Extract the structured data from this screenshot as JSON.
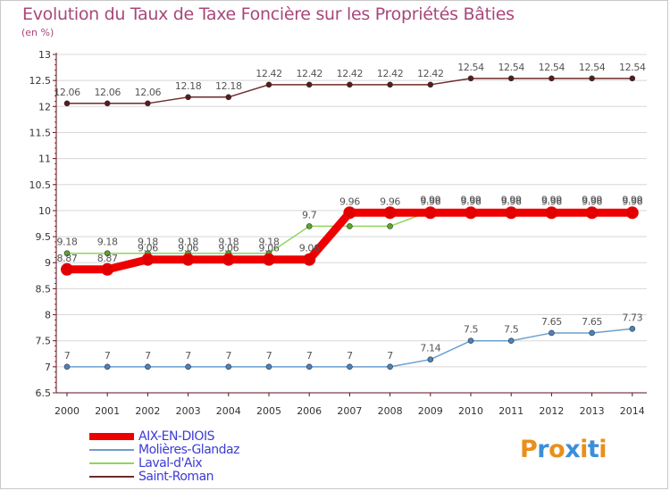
{
  "header": {
    "title": "Evolution du Taux de Taxe Foncière sur les Propriétés Bâties",
    "unit": "(en %)"
  },
  "logo": {
    "text": "Proxiti"
  },
  "colors": {
    "title": "#a8477a",
    "legend_text": "#3b3bd6",
    "axis": "#5a0f1e",
    "grid": "#d8d8d8"
  },
  "chart_data": {
    "type": "line",
    "title": "Evolution du Taux de Taxe Foncière sur les Propriétés Bâties",
    "ylabel": "(en %)",
    "xlabel": "",
    "ylim": [
      6.5,
      13
    ],
    "yticks": [
      6.5,
      7,
      7.5,
      8,
      8.5,
      9,
      9.5,
      10,
      10.5,
      11,
      11.5,
      12,
      12.5,
      13
    ],
    "ytick_labels": [
      "6.5",
      "7",
      "7.5",
      "8",
      "8.5",
      "9",
      "9.5",
      "10",
      "10.5",
      "11",
      "11.5",
      "12",
      "12.5",
      "13"
    ],
    "categories": [
      "2000",
      "2001",
      "2002",
      "2003",
      "2004",
      "2005",
      "2006",
      "2007",
      "2008",
      "2009",
      "2010",
      "2011",
      "2012",
      "2013",
      "2014"
    ],
    "grid": "horizontal",
    "legend_position": "bottom-left",
    "series": [
      {
        "name": "Saint-Roman",
        "color": "#6e2a2a",
        "marker_color": "#5a1a1a",
        "values": [
          12.06,
          12.06,
          12.06,
          12.18,
          12.18,
          12.42,
          12.42,
          12.42,
          12.42,
          12.42,
          12.54,
          12.54,
          12.54,
          12.54,
          12.54
        ],
        "labels": [
          "12.06",
          "12.06",
          "12.06",
          "12.18",
          "12.18",
          "12.42",
          "12.42",
          "12.42",
          "12.42",
          "12.42",
          "12.54",
          "12.54",
          "12.54",
          "12.54",
          "12.54"
        ]
      },
      {
        "name": "Laval-d'Aix",
        "color": "#8ed65a",
        "marker_color": "#5aa82a",
        "values": [
          9.18,
          9.18,
          9.18,
          9.18,
          9.18,
          9.18,
          9.7,
          9.7,
          9.7,
          9.99,
          9.99,
          9.99,
          9.99,
          9.99,
          9.99
        ],
        "labels": [
          "9.18",
          "9.18",
          "9.18",
          "9.18",
          "9.18",
          "9.18",
          "9.7",
          "",
          "",
          "9.99",
          "9.99",
          "9.99",
          "9.99",
          "9.99",
          "9.99"
        ]
      },
      {
        "name": "AIX-EN-DIOIS",
        "color": "#ee0000",
        "marker_color": "#e00000",
        "values": [
          8.87,
          8.87,
          9.06,
          9.06,
          9.06,
          9.06,
          9.06,
          9.96,
          9.96,
          9.96,
          9.96,
          9.96,
          9.96,
          9.96,
          9.96
        ],
        "labels": [
          "8.87",
          "8.87",
          "9.06",
          "9.06",
          "9.06",
          "9.06",
          "9.06",
          "9.96",
          "9.96",
          "9.96",
          "9.96",
          "9.96",
          "9.96",
          "9.96",
          "9.96"
        ]
      },
      {
        "name": "Molières-Glandaz",
        "color": "#6a9fd0",
        "marker_color": "#4a82c0",
        "values": [
          7,
          7,
          7,
          7,
          7,
          7,
          7,
          7,
          7,
          7.14,
          7.5,
          7.5,
          7.65,
          7.65,
          7.73
        ],
        "labels": [
          "7",
          "7",
          "7",
          "7",
          "7",
          "7",
          "7",
          "7",
          "7",
          "7.14",
          "7.5",
          "7.5",
          "7.65",
          "7.65",
          "7.73"
        ]
      }
    ],
    "legend": [
      "AIX-EN-DIOIS",
      "Molières-Glandaz",
      "Laval-d'Aix",
      "Saint-Roman"
    ]
  }
}
